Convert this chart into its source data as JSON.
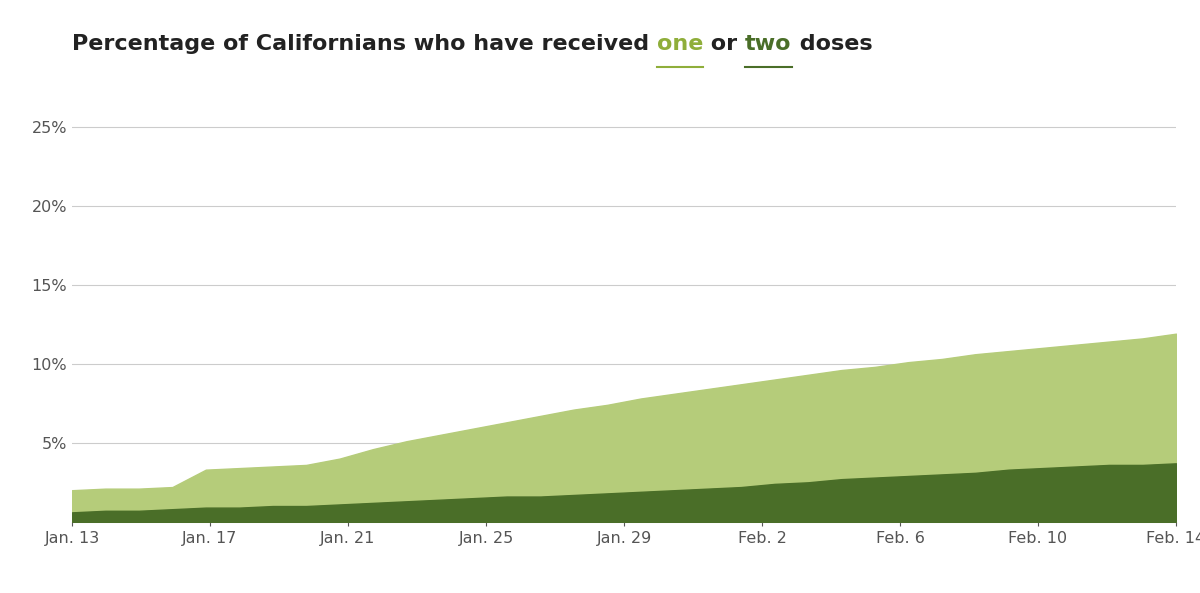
{
  "background_color": "#ffffff",
  "plot_bg_color": "#ffffff",
  "grid_color": "#cccccc",
  "color_one": "#b5cc7a",
  "color_two": "#4a6e28",
  "x_labels": [
    "Jan. 13",
    "Jan. 17",
    "Jan. 21",
    "Jan. 25",
    "Jan. 29",
    "Feb. 2",
    "Feb. 6",
    "Feb. 10",
    "Feb. 14"
  ],
  "y_ticks": [
    0.05,
    0.1,
    0.15,
    0.2,
    0.25
  ],
  "y_tick_labels": [
    "5%",
    "10%",
    "15%",
    "20%",
    "25%"
  ],
  "ylim": [
    0,
    0.27
  ],
  "x_vals": [
    0,
    1,
    2,
    3,
    4,
    5,
    6,
    7,
    8,
    9,
    10,
    11,
    12,
    13,
    14,
    15,
    16,
    17,
    18,
    19,
    20,
    21,
    22,
    23,
    24,
    25,
    26,
    27,
    28,
    29,
    30,
    31,
    32,
    33
  ],
  "values_one": [
    0.02,
    0.021,
    0.021,
    0.022,
    0.033,
    0.034,
    0.035,
    0.036,
    0.04,
    0.046,
    0.051,
    0.055,
    0.059,
    0.063,
    0.067,
    0.071,
    0.074,
    0.078,
    0.081,
    0.084,
    0.087,
    0.09,
    0.093,
    0.096,
    0.098,
    0.101,
    0.103,
    0.106,
    0.108,
    0.11,
    0.112,
    0.114,
    0.116,
    0.119
  ],
  "values_two": [
    0.006,
    0.007,
    0.007,
    0.008,
    0.009,
    0.009,
    0.01,
    0.01,
    0.011,
    0.012,
    0.013,
    0.014,
    0.015,
    0.016,
    0.016,
    0.017,
    0.018,
    0.019,
    0.02,
    0.021,
    0.022,
    0.024,
    0.025,
    0.027,
    0.028,
    0.029,
    0.03,
    0.031,
    0.033,
    0.034,
    0.035,
    0.036,
    0.036,
    0.037
  ],
  "title_fontsize": 16,
  "axis_fontsize": 11.5,
  "title_text_color": "#222222",
  "one_color": "#8fae3a",
  "two_color": "#4a6e28",
  "label_color": "#555555"
}
